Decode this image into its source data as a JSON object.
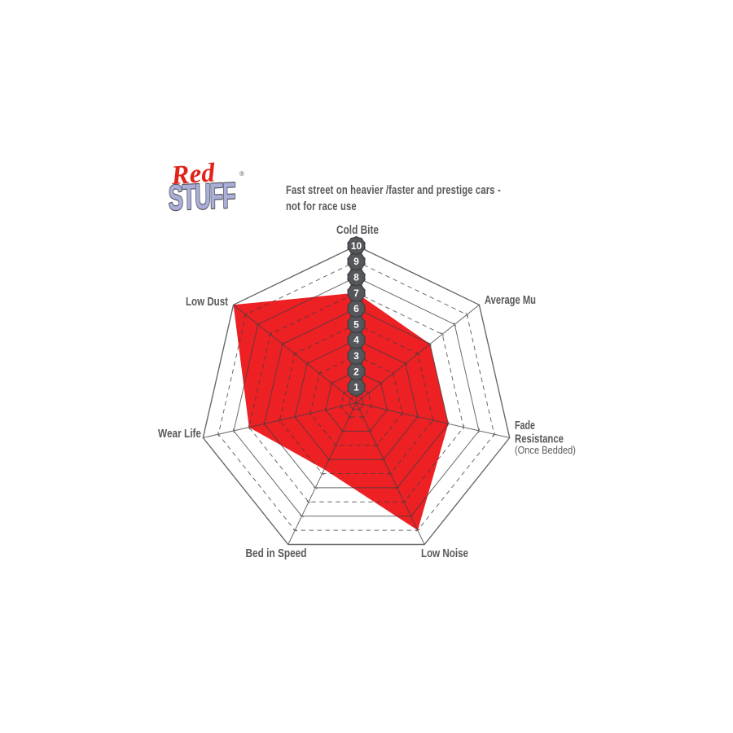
{
  "page": {
    "background": "#ffffff"
  },
  "logo": {
    "red_text": "Red",
    "stuff_text": "STUFF",
    "registered_mark": "®",
    "red_color": "#e2231a",
    "stuff_color": "#a9afd9",
    "stuff_outline_color": "#54555c",
    "mark_color": "#58595b"
  },
  "header": {
    "line1": "Fast street on heavier /faster and prestige cars -",
    "line2": "not for race use",
    "color": "#58595b"
  },
  "chart_data": {
    "type": "radar",
    "title": "RedStuff brake pad performance ratings",
    "categories": [
      "Cold Bite",
      "Average Mu",
      "Fade Resistance (Once Bedded)",
      "Low Noise",
      "Bed in Speed",
      "Wear Life",
      "Low Dust"
    ],
    "series": [
      {
        "name": "RedStuff",
        "values": [
          7,
          6,
          6,
          9,
          4.7,
          7,
          10
        ]
      }
    ],
    "axes": [
      {
        "label": "Cold Bite",
        "value": 7
      },
      {
        "label": "Average Mu",
        "value": 6
      },
      {
        "label": "Fade Resistance",
        "label_lines": [
          "Fade",
          "Resistance"
        ],
        "sublabel": "(Once Bedded)",
        "value": 6
      },
      {
        "label": "Low Noise",
        "value": 9
      },
      {
        "label": "Bed in Speed",
        "value": 4.7
      },
      {
        "label": "Wear Life",
        "value": 7
      },
      {
        "label": "Low Dust",
        "value": 10
      }
    ],
    "scale_ticks": [
      1,
      2,
      3,
      4,
      5,
      6,
      7,
      8,
      9,
      10
    ],
    "ylim": [
      0,
      10
    ],
    "grid": {
      "rings": 10,
      "even_rings": "solid",
      "odd_rings": "dashed",
      "spokes": 7,
      "tick_marks": true
    },
    "legend": "none",
    "fill_color": "#ed2024",
    "line_color": "#3e3f41",
    "badge_color": "#55575a",
    "badge_edge_color": "#3f4145",
    "badge_text_color": "#ffffff",
    "label_color": "#58595b"
  }
}
